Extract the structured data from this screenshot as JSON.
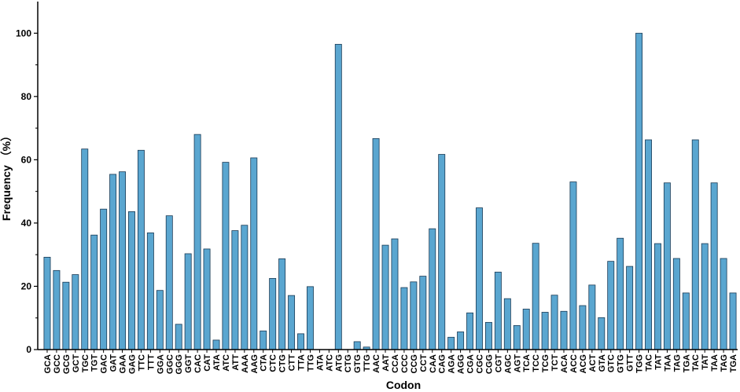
{
  "chart_data": {
    "type": "bar",
    "xlabel": "Codon",
    "ylabel": "Frequency （%）",
    "ylim": [
      0,
      110
    ],
    "yticks": [
      0,
      20,
      40,
      60,
      80,
      100
    ],
    "grid": false,
    "colors": {
      "bar": "#5aa6d0",
      "bar_stroke": "#1a3a55",
      "axis": "#000000"
    },
    "categories": [
      "GCA",
      "GCC",
      "GCG",
      "GCT",
      "TGC",
      "TGT",
      "GAC",
      "GAT",
      "GAA",
      "GAG",
      "TTC",
      "TTT",
      "GGA",
      "GGC",
      "GGG",
      "GGT",
      "CAC",
      "CAT",
      "ATA",
      "ATC",
      "ATT",
      "AAA",
      "AAG",
      "CTA",
      "CTC",
      "CTG",
      "CTT",
      "TTA",
      "TTG",
      "ATA",
      "ATC",
      "ATG",
      "CTG",
      "GTG",
      "TTG",
      "AAC",
      "AAT",
      "CCA",
      "CCC",
      "CCG",
      "CCT",
      "CAA",
      "CAG",
      "AGA",
      "AGG",
      "CGA",
      "CGC",
      "CGG",
      "CGT",
      "AGC",
      "AGT",
      "TCA",
      "TCC",
      "TCG",
      "TCT",
      "ACA",
      "ACC",
      "ACG",
      "ACT",
      "GTA",
      "GTC",
      "GTG",
      "GTT",
      "TGG",
      "TAC",
      "TAT",
      "TAA",
      "TAG",
      "TGA",
      "TAC",
      "TAT",
      "TAA",
      "TAG",
      "TGA"
    ],
    "values": [
      29.2,
      25,
      21.3,
      23.7,
      63.4,
      36.2,
      44.4,
      55.4,
      56.2,
      43.6,
      63,
      36.9,
      18.7,
      42.3,
      8,
      30.3,
      68,
      31.8,
      3,
      59.2,
      37.6,
      39.3,
      60.6,
      5.9,
      22.5,
      28.7,
      17.1,
      5,
      19.9,
      0,
      0,
      96.5,
      0,
      2.5,
      0.8,
      66.7,
      33,
      35,
      19.6,
      21.4,
      23.2,
      38.2,
      61.7,
      3.9,
      5.6,
      11.6,
      44.8,
      8.6,
      24.5,
      16.1,
      7.6,
      12.8,
      33.6,
      11.8,
      17.2,
      12.1,
      53,
      13.9,
      20.4,
      10.1,
      27.9,
      35.2,
      26.3,
      100,
      66.3,
      33.5,
      52.7,
      28.8,
      17.9,
      66.3,
      33.5,
      52.7,
      28.8,
      17.9
    ]
  }
}
